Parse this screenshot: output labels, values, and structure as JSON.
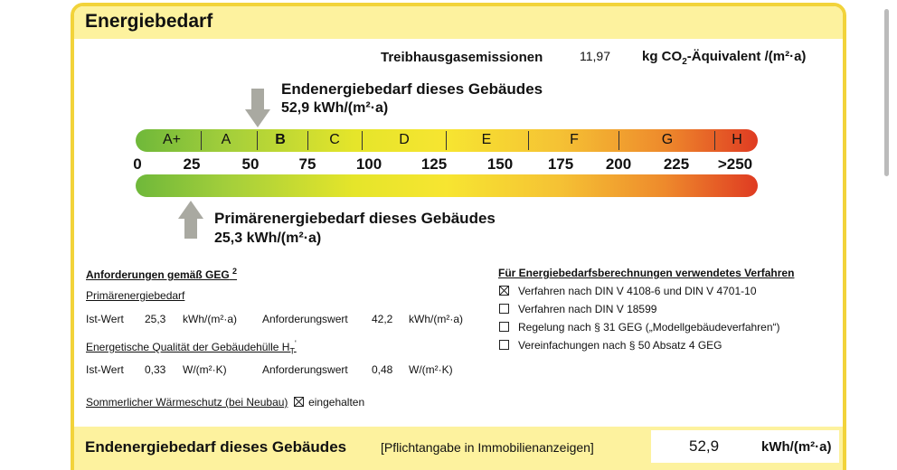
{
  "header": {
    "title": "Energiebedarf"
  },
  "emissions": {
    "label": "Treibhausgasemissionen",
    "value": "11,97",
    "unit_pre": "kg CO",
    "unit_sub": "2",
    "unit_post": "-Äquivalent /(m²·a)"
  },
  "scale": {
    "top_label": {
      "line1": "Endenergiebedarf dieses Gebäudes",
      "line2": "52,9 kWh/(m²·a)"
    },
    "classes": [
      "A+",
      "A",
      "B",
      "C",
      "D",
      "E",
      "F",
      "G",
      "H"
    ],
    "ticks": [
      "0",
      "25",
      "50",
      "75",
      "100",
      "125",
      "150",
      "175",
      "200",
      "225",
      ">250"
    ],
    "bottom_label": {
      "line1": "Primärenergiebedarf dieses Gebäudes",
      "line2": "25,3 kWh/(m²·a)"
    }
  },
  "requirements": {
    "title": "Anforderungen gemäß GEG",
    "title_sup": "2",
    "primary": {
      "heading": "Primärenergiebedarf",
      "row": [
        "Ist-Wert",
        "25,3",
        "kWh/(m²·a)",
        "Anforderungswert",
        "42,2",
        "kWh/(m²·a)"
      ]
    },
    "envelope": {
      "heading": "Energetische Qualität der Gebäudehülle H",
      "heading_sub": "T",
      "heading_sup": "'",
      "row": [
        "Ist-Wert",
        "0,33",
        "W/(m²·K)",
        "Anforderungswert",
        "0,48",
        "W/(m²·K)"
      ]
    },
    "summer": {
      "label": "Sommerlicher Wärmeschutz (bei Neubau)",
      "checked": true,
      "status": "eingehalten"
    }
  },
  "methods": {
    "title": "Für Energiebedarfsberechnungen verwendetes Verfahren",
    "items": [
      {
        "label": "Verfahren nach DIN V 4108-6 und DIN V 4701-10",
        "checked": true
      },
      {
        "label": "Verfahren nach DIN V 18599",
        "checked": false
      },
      {
        "label": "Regelung nach § 31 GEG („Modellgebäudeverfahren“)",
        "checked": false
      },
      {
        "label": "Vereinfachungen nach § 50 Absatz 4 GEG",
        "checked": false
      }
    ]
  },
  "footer": {
    "title": "Endenergiebedarf dieses Gebäudes",
    "note": "[Pflichtangabe in Immobilienanzeigen]",
    "value": "52,9",
    "unit": "kWh/(m²·a)"
  }
}
